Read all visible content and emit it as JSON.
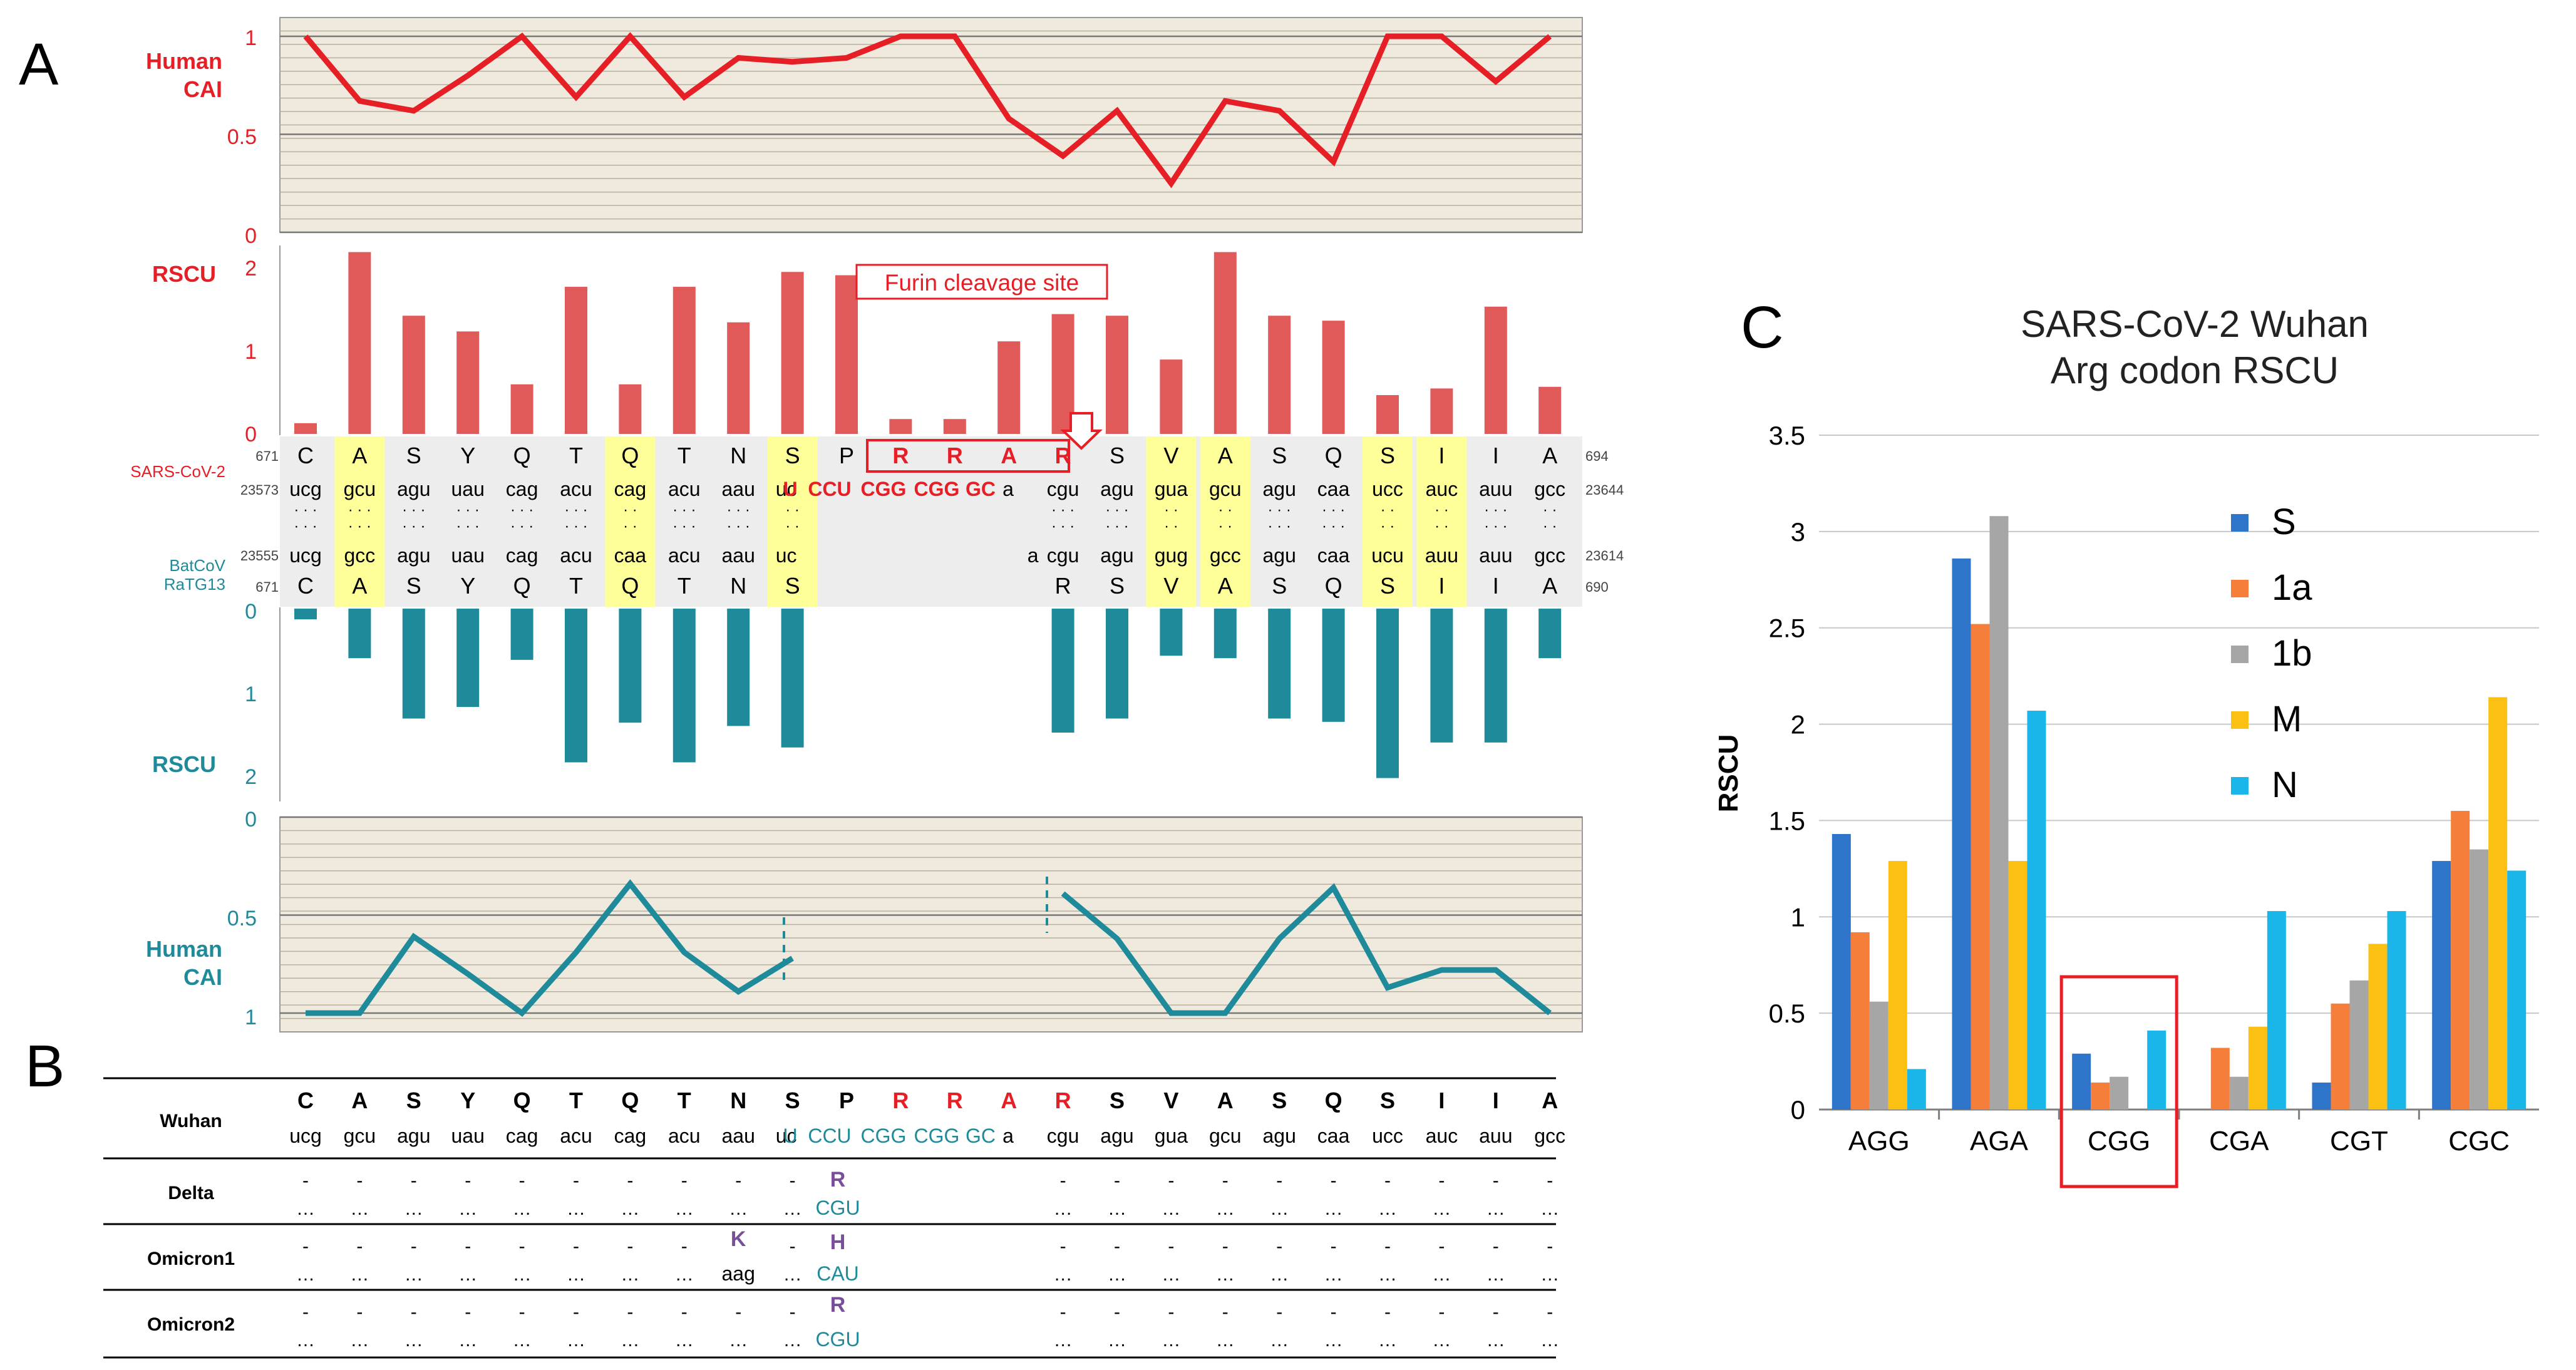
{
  "panel_labels": {
    "a": "A",
    "b": "B",
    "c": "C"
  },
  "colors": {
    "sars_red": "#e61e25",
    "bar_red": "#e05a5a",
    "teal": "#1e8a9a",
    "highlight": "#ffff99",
    "plot_bg": "#efeadd",
    "seq_bg": "#ededed",
    "series_S": "#2e75c9",
    "series_1a": "#f57f3a",
    "series_1b": "#a6a6a6",
    "series_M": "#fcc012",
    "series_N": "#1ab6ea"
  },
  "panel_a": {
    "top_label": [
      "Human",
      "CAI"
    ],
    "rscu_top_label": "RSCU",
    "rscu_bottom_label": "RSCU",
    "bottom_label": [
      "Human",
      "CAI"
    ],
    "top_cai_ticks": [
      "1",
      "0.5",
      "0"
    ],
    "rscu_top_ticks": [
      "2",
      "1",
      "0"
    ],
    "rscu_bottom_ticks": [
      "0",
      "1",
      "2"
    ],
    "bottom_cai_ticks": [
      "0",
      "0.5",
      "1"
    ],
    "furin_label": "Furin cleavage site",
    "sars_name": "SARS-CoV-2",
    "bat_name": [
      "BatCoV",
      "RaTG13"
    ],
    "sars_start_aa": "671",
    "sars_end_aa": "694",
    "sars_start_nt": "23573",
    "sars_end_nt": "23644",
    "bat_start_nt": "23555",
    "bat_end_nt": "23614",
    "bat_start_aa": "671",
    "bat_end_aa": "690",
    "sars_aa": [
      "C",
      "A",
      "S",
      "Y",
      "Q",
      "T",
      "Q",
      "T",
      "N",
      "S",
      "P",
      "R",
      "R",
      "A",
      "R",
      "S",
      "V",
      "A",
      "S",
      "Q",
      "S",
      "I",
      "I",
      "A"
    ],
    "sars_codons": [
      "ucg",
      "gcu",
      "agu",
      "uau",
      "cag",
      "acu",
      "cag",
      "acu",
      "aau",
      "uc",
      "",
      "",
      "",
      "",
      "cgu",
      "agu",
      "gua",
      "gcu",
      "agu",
      "caa",
      "ucc",
      "auc",
      "auu",
      "gcc"
    ],
    "insertion_seq": [
      "U",
      "CCU",
      "CGG",
      "CGG",
      "GC",
      "a"
    ],
    "dots": [
      "· · ·",
      "· · ·",
      "· · ·",
      "· · ·",
      "· · ·",
      "· · ·",
      "· ·",
      "· · ·",
      "· · ·",
      "· ·",
      "",
      "",
      "",
      "",
      "· · ·",
      "· · ·",
      "· ·",
      "· ·",
      "· · ·",
      "· · ·",
      "· ·",
      "· ·",
      "· · ·",
      "· ·"
    ],
    "bat_codons": [
      "ucg",
      "gcc",
      "agu",
      "uau",
      "cag",
      "acu",
      "caa",
      "acu",
      "aau",
      "uc",
      "",
      "",
      "",
      "",
      "a",
      "agu",
      "gug",
      "gcc",
      "agu",
      "caa",
      "ucu",
      "auu",
      "auu",
      "gcc"
    ],
    "bat_aa": [
      "C",
      "A",
      "S",
      "Y",
      "Q",
      "T",
      "Q",
      "T",
      "N",
      "S",
      "",
      "",
      "",
      "",
      "R",
      "S",
      "V",
      "A",
      "S",
      "Q",
      "S",
      "I",
      "I",
      "A"
    ],
    "highlight_cols": [
      1,
      6,
      9,
      16,
      17,
      20,
      21
    ],
    "top_cai_values": [
      1,
      0.67,
      0.62,
      0.8,
      1,
      0.69,
      1,
      0.69,
      0.89,
      0.87,
      0.89,
      1,
      1,
      0.58,
      0.39,
      0.62,
      0.25,
      0.67,
      0.62,
      0.36,
      1,
      1,
      0.77,
      1
    ],
    "top_rscu_values": [
      0.13,
      2.2,
      1.43,
      1.24,
      0.6,
      1.78,
      0.6,
      1.78,
      1.35,
      1.96,
      1.92,
      0.18,
      0.18,
      1.12,
      1.45,
      1.43,
      0.9,
      2.2,
      1.43,
      1.37,
      0.47,
      0.55,
      1.54,
      0.57
    ],
    "bottom_rscu_values": [
      0.13,
      0.6,
      1.33,
      1.19,
      0.62,
      1.86,
      1.38,
      1.86,
      1.42,
      1.68,
      null,
      null,
      null,
      null,
      1.5,
      1.33,
      0.57,
      0.6,
      1.33,
      1.37,
      2.05,
      1.62,
      1.62,
      0.6
    ],
    "bottom_cai_values": [
      1,
      1,
      0.61,
      0.8,
      1,
      0.69,
      0.34,
      0.69,
      0.89,
      0.72,
      null,
      null,
      null,
      null,
      0.39,
      0.62,
      1,
      1,
      0.62,
      0.36,
      0.87,
      0.78,
      0.78,
      1
    ]
  },
  "panel_b": {
    "rows": [
      {
        "label": "Wuhan"
      },
      {
        "label": "Delta"
      },
      {
        "label": "Omicron1"
      },
      {
        "label": "Omicron2"
      }
    ],
    "wuhan_aa": [
      "C",
      "A",
      "S",
      "Y",
      "Q",
      "T",
      "Q",
      "T",
      "N",
      "S",
      "P",
      "R",
      "R",
      "A",
      "R",
      "S",
      "V",
      "A",
      "S",
      "Q",
      "S",
      "I",
      "I",
      "A"
    ],
    "wuhan_codons": [
      "ucg",
      "gcu",
      "agu",
      "uau",
      "cag",
      "acu",
      "cag",
      "acu",
      "aau",
      "uc",
      "",
      "",
      "",
      "",
      "cgu",
      "agu",
      "gua",
      "gcu",
      "agu",
      "caa",
      "ucc",
      "auc",
      "auu",
      "gcc"
    ],
    "wuhan_insert": [
      "U",
      "CCU",
      "CGG",
      "CGG",
      "GC",
      "a"
    ],
    "dash": "-",
    "ellipsis": "…",
    "delta_mut": {
      "aa": "R",
      "codon": "CGU"
    },
    "omicron1_mut": {
      "aa_k": "K",
      "codon_k": "aag",
      "aa_h": "H",
      "codon_h": "CAU"
    },
    "omicron2_mut": {
      "aa": "R",
      "codon": "CGU"
    }
  },
  "chart_data": {
    "type": "bar",
    "title": "SARS-CoV-2 Wuhan\nArg codon RSCU",
    "title_lines": [
      "SARS-CoV-2 Wuhan",
      "Arg codon RSCU"
    ],
    "ylabel": "RSCU",
    "xlabel": "",
    "ylim": [
      0,
      3.5
    ],
    "yticks": [
      "0",
      "0.5",
      "1",
      "1.5",
      "2",
      "2.5",
      "3",
      "3.5"
    ],
    "grid": true,
    "legend_position": "inside-upper-center",
    "categories": [
      "AGG",
      "AGA",
      "CGG",
      "CGA",
      "CGT",
      "CGC"
    ],
    "highlighted_category": "CGG",
    "series": [
      {
        "name": "S",
        "values": [
          1.43,
          2.86,
          0.29,
          0.0,
          0.14,
          1.29
        ]
      },
      {
        "name": "1a",
        "values": [
          0.92,
          2.52,
          0.14,
          0.32,
          0.55,
          1.55
        ]
      },
      {
        "name": "1b",
        "values": [
          0.56,
          3.08,
          0.17,
          0.17,
          0.67,
          1.35
        ]
      },
      {
        "name": "M",
        "values": [
          1.29,
          1.29,
          0.0,
          0.43,
          0.86,
          2.14
        ]
      },
      {
        "name": "N",
        "values": [
          0.21,
          2.07,
          0.41,
          1.03,
          1.03,
          1.24
        ]
      }
    ]
  }
}
